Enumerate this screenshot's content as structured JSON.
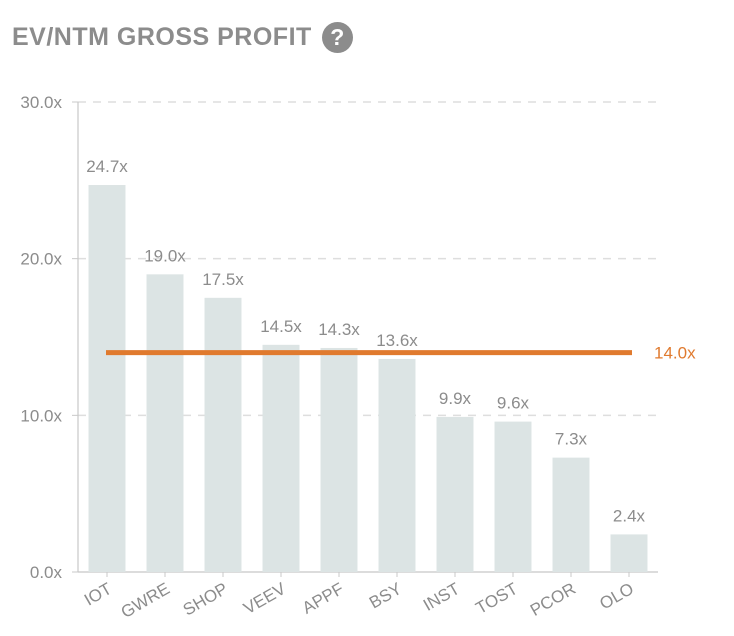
{
  "header": {
    "title": "EV/NTM GROSS PROFIT",
    "help_icon": "question-circle-icon",
    "help_glyph": "?"
  },
  "chart_data": {
    "type": "bar",
    "title": "EV/NTM GROSS PROFIT",
    "categories": [
      "IOT",
      "GWRE",
      "SHOP",
      "VEEV",
      "APPF",
      "BSY",
      "INST",
      "TOST",
      "PCOR",
      "OLO"
    ],
    "values": [
      24.7,
      19.0,
      17.5,
      14.5,
      14.3,
      13.6,
      9.9,
      9.6,
      7.3,
      2.4
    ],
    "data_labels": [
      "24.7x",
      "19.0x",
      "17.5x",
      "14.5x",
      "14.3x",
      "13.6x",
      "9.9x",
      "9.6x",
      "7.3x",
      "2.4x"
    ],
    "yticks": [
      0,
      10,
      20,
      30
    ],
    "ytick_labels": [
      "0.0x",
      "10.0x",
      "20.0x",
      "30.0x"
    ],
    "ylim": [
      0,
      30
    ],
    "reference_line": {
      "value": 14.0,
      "label": "14.0x",
      "color": "#e07a2e"
    },
    "bar_color": "#dce4e4",
    "grid": true,
    "xlabel": "",
    "ylabel": ""
  }
}
